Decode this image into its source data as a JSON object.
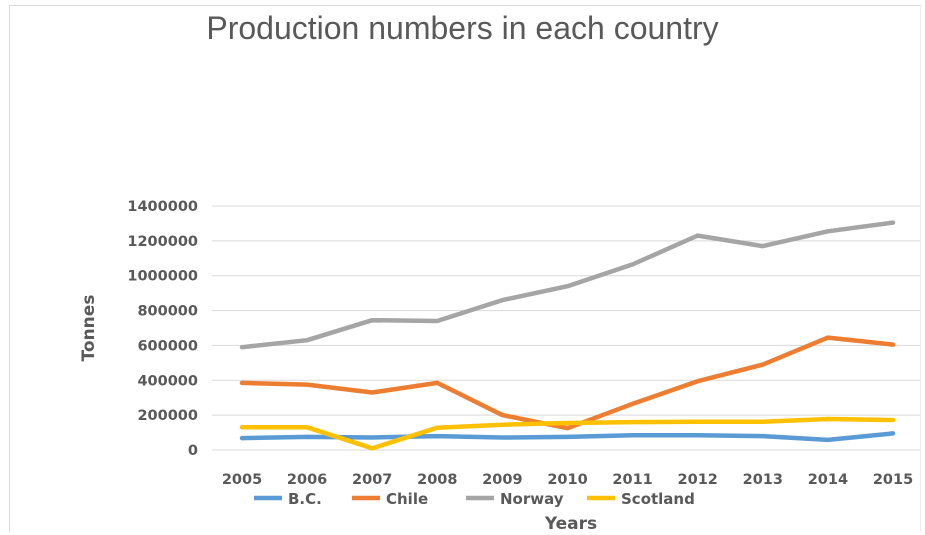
{
  "chart_data": {
    "type": "line",
    "title": "Production numbers in each country",
    "xlabel": "Years",
    "ylabel": "Tonnes",
    "categories": [
      "2005",
      "2006",
      "2007",
      "2008",
      "2009",
      "2010",
      "2011",
      "2012",
      "2013",
      "2014",
      "2015"
    ],
    "yticks": [
      "0",
      "200000",
      "400000",
      "600000",
      "800000",
      "1000000",
      "1200000",
      "1400000"
    ],
    "ylim": [
      0,
      1400000
    ],
    "grid": true,
    "legend_position": "bottom",
    "series": [
      {
        "name": "B.C.",
        "color": "#5B9BD5",
        "values": [
          68000,
          75000,
          72000,
          80000,
          72000,
          75000,
          85000,
          85000,
          80000,
          58000,
          95000
        ]
      },
      {
        "name": "Chile",
        "color": "#ED7D31",
        "values": [
          385000,
          375000,
          330000,
          385000,
          200000,
          125000,
          265000,
          395000,
          490000,
          645000,
          605000
        ]
      },
      {
        "name": "Norway",
        "color": "#A5A5A5",
        "values": [
          590000,
          630000,
          745000,
          740000,
          860000,
          940000,
          1065000,
          1230000,
          1170000,
          1255000,
          1305000
        ]
      },
      {
        "name": "Scotland",
        "color": "#FFC000",
        "values": [
          130000,
          130000,
          10000,
          128000,
          145000,
          155000,
          160000,
          162000,
          162000,
          178000,
          172000
        ]
      }
    ]
  }
}
